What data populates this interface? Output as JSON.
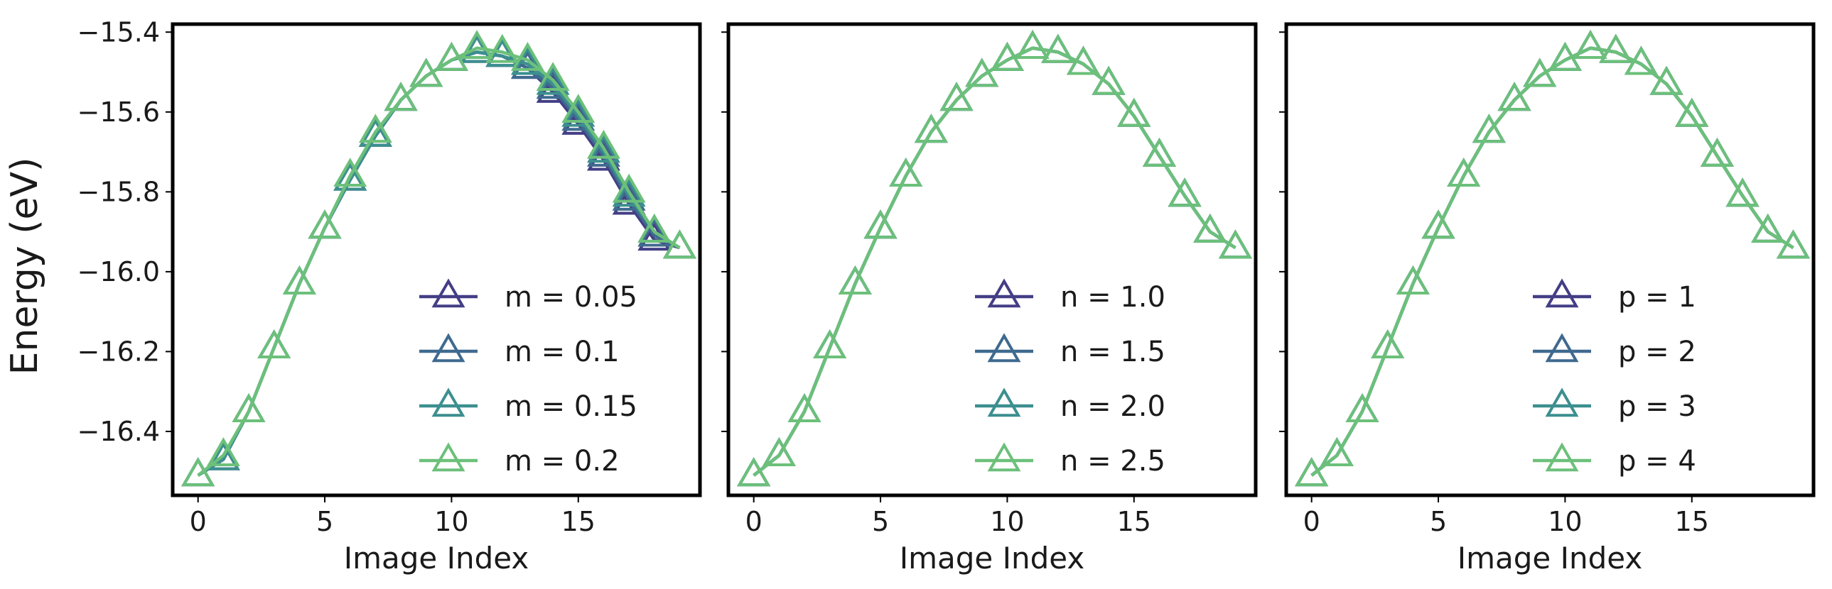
{
  "colors": {
    "series": [
      "#433e85",
      "#3f6a8f",
      "#3c8f8f",
      "#6cc07a"
    ],
    "frame": "#000000",
    "text": "#1a1a1a"
  },
  "marker": "triangle-up-open",
  "chart_data": [
    {
      "type": "line",
      "xlabel": "Image Index",
      "ylabel": "Energy (eV)",
      "xlim": [
        -1.0,
        19.8
      ],
      "ylim": [
        -16.56,
        -15.38
      ],
      "xticks": [
        0,
        5,
        10,
        15
      ],
      "yticks": [
        -16.4,
        -16.2,
        -16.0,
        -15.8,
        -15.6,
        -15.4
      ],
      "grid": false,
      "legend_position": "lower-right",
      "x": [
        0,
        1,
        2,
        3,
        4,
        5,
        6,
        7,
        8,
        9,
        10,
        11,
        12,
        13,
        14,
        15,
        16,
        17,
        18,
        19
      ],
      "series": [
        {
          "name": "m = 0.05",
          "values": [
            -16.51,
            -16.47,
            -16.35,
            -16.19,
            -16.03,
            -15.89,
            -15.77,
            -15.66,
            -15.57,
            -15.51,
            -15.47,
            -15.45,
            -15.46,
            -15.49,
            -15.55,
            -15.63,
            -15.72,
            -15.83,
            -15.92,
            -15.94
          ]
        },
        {
          "name": "m = 0.1",
          "values": [
            -16.51,
            -16.47,
            -16.35,
            -16.19,
            -16.03,
            -15.89,
            -15.77,
            -15.66,
            -15.57,
            -15.51,
            -15.47,
            -15.45,
            -15.46,
            -15.49,
            -15.54,
            -15.62,
            -15.71,
            -15.82,
            -15.91,
            -15.94
          ]
        },
        {
          "name": "m = 0.15",
          "values": [
            -16.51,
            -16.47,
            -16.35,
            -16.19,
            -16.03,
            -15.89,
            -15.77,
            -15.66,
            -15.57,
            -15.51,
            -15.47,
            -15.45,
            -15.46,
            -15.48,
            -15.53,
            -15.61,
            -15.7,
            -15.81,
            -15.9,
            -15.94
          ]
        },
        {
          "name": "m = 0.2",
          "values": [
            -16.51,
            -16.46,
            -16.35,
            -16.19,
            -16.03,
            -15.89,
            -15.76,
            -15.65,
            -15.57,
            -15.51,
            -15.47,
            -15.44,
            -15.45,
            -15.47,
            -15.52,
            -15.6,
            -15.69,
            -15.8,
            -15.9,
            -15.94
          ]
        }
      ]
    },
    {
      "type": "line",
      "xlabel": "Image Index",
      "ylabel": "",
      "xlim": [
        -1.0,
        19.8
      ],
      "ylim": [
        -16.56,
        -15.38
      ],
      "xticks": [
        0,
        5,
        10,
        15
      ],
      "yticks": [
        -16.4,
        -16.2,
        -16.0,
        -15.8,
        -15.6,
        -15.4
      ],
      "grid": false,
      "legend_position": "lower-right",
      "x": [
        0,
        1,
        2,
        3,
        4,
        5,
        6,
        7,
        8,
        9,
        10,
        11,
        12,
        13,
        14,
        15,
        16,
        17,
        18,
        19
      ],
      "series": [
        {
          "name": "n = 1.0",
          "values": [
            -16.51,
            -16.46,
            -16.35,
            -16.19,
            -16.03,
            -15.89,
            -15.76,
            -15.65,
            -15.57,
            -15.51,
            -15.47,
            -15.44,
            -15.45,
            -15.48,
            -15.53,
            -15.61,
            -15.71,
            -15.81,
            -15.9,
            -15.94
          ]
        },
        {
          "name": "n = 1.5",
          "values": [
            -16.51,
            -16.46,
            -16.35,
            -16.19,
            -16.03,
            -15.89,
            -15.76,
            -15.65,
            -15.57,
            -15.51,
            -15.47,
            -15.44,
            -15.45,
            -15.48,
            -15.53,
            -15.61,
            -15.71,
            -15.81,
            -15.9,
            -15.94
          ]
        },
        {
          "name": "n = 2.0",
          "values": [
            -16.51,
            -16.46,
            -16.35,
            -16.19,
            -16.03,
            -15.89,
            -15.76,
            -15.65,
            -15.57,
            -15.51,
            -15.47,
            -15.44,
            -15.45,
            -15.48,
            -15.53,
            -15.61,
            -15.71,
            -15.81,
            -15.9,
            -15.94
          ]
        },
        {
          "name": "n = 2.5",
          "values": [
            -16.51,
            -16.46,
            -16.35,
            -16.19,
            -16.03,
            -15.89,
            -15.76,
            -15.65,
            -15.57,
            -15.51,
            -15.47,
            -15.44,
            -15.45,
            -15.48,
            -15.53,
            -15.61,
            -15.71,
            -15.81,
            -15.9,
            -15.94
          ]
        }
      ]
    },
    {
      "type": "line",
      "xlabel": "Image Index",
      "ylabel": "",
      "xlim": [
        -1.0,
        19.8
      ],
      "ylim": [
        -16.56,
        -15.38
      ],
      "xticks": [
        0,
        5,
        10,
        15
      ],
      "yticks": [
        -16.4,
        -16.2,
        -16.0,
        -15.8,
        -15.6,
        -15.4
      ],
      "grid": false,
      "legend_position": "lower-right",
      "x": [
        0,
        1,
        2,
        3,
        4,
        5,
        6,
        7,
        8,
        9,
        10,
        11,
        12,
        13,
        14,
        15,
        16,
        17,
        18,
        19
      ],
      "series": [
        {
          "name": "p = 1",
          "values": [
            -16.51,
            -16.46,
            -16.35,
            -16.19,
            -16.03,
            -15.89,
            -15.76,
            -15.65,
            -15.57,
            -15.51,
            -15.47,
            -15.44,
            -15.45,
            -15.48,
            -15.53,
            -15.61,
            -15.71,
            -15.81,
            -15.9,
            -15.94
          ]
        },
        {
          "name": "p = 2",
          "values": [
            -16.51,
            -16.46,
            -16.35,
            -16.19,
            -16.03,
            -15.89,
            -15.76,
            -15.65,
            -15.57,
            -15.51,
            -15.47,
            -15.44,
            -15.45,
            -15.48,
            -15.53,
            -15.61,
            -15.71,
            -15.81,
            -15.9,
            -15.94
          ]
        },
        {
          "name": "p = 3",
          "values": [
            -16.51,
            -16.46,
            -16.35,
            -16.19,
            -16.03,
            -15.89,
            -15.76,
            -15.65,
            -15.57,
            -15.51,
            -15.47,
            -15.44,
            -15.45,
            -15.48,
            -15.53,
            -15.61,
            -15.71,
            -15.81,
            -15.9,
            -15.94
          ]
        },
        {
          "name": "p = 4",
          "values": [
            -16.51,
            -16.46,
            -16.35,
            -16.19,
            -16.03,
            -15.89,
            -15.76,
            -15.65,
            -15.57,
            -15.51,
            -15.47,
            -15.44,
            -15.45,
            -15.48,
            -15.53,
            -15.61,
            -15.71,
            -15.81,
            -15.9,
            -15.94
          ]
        }
      ]
    }
  ]
}
